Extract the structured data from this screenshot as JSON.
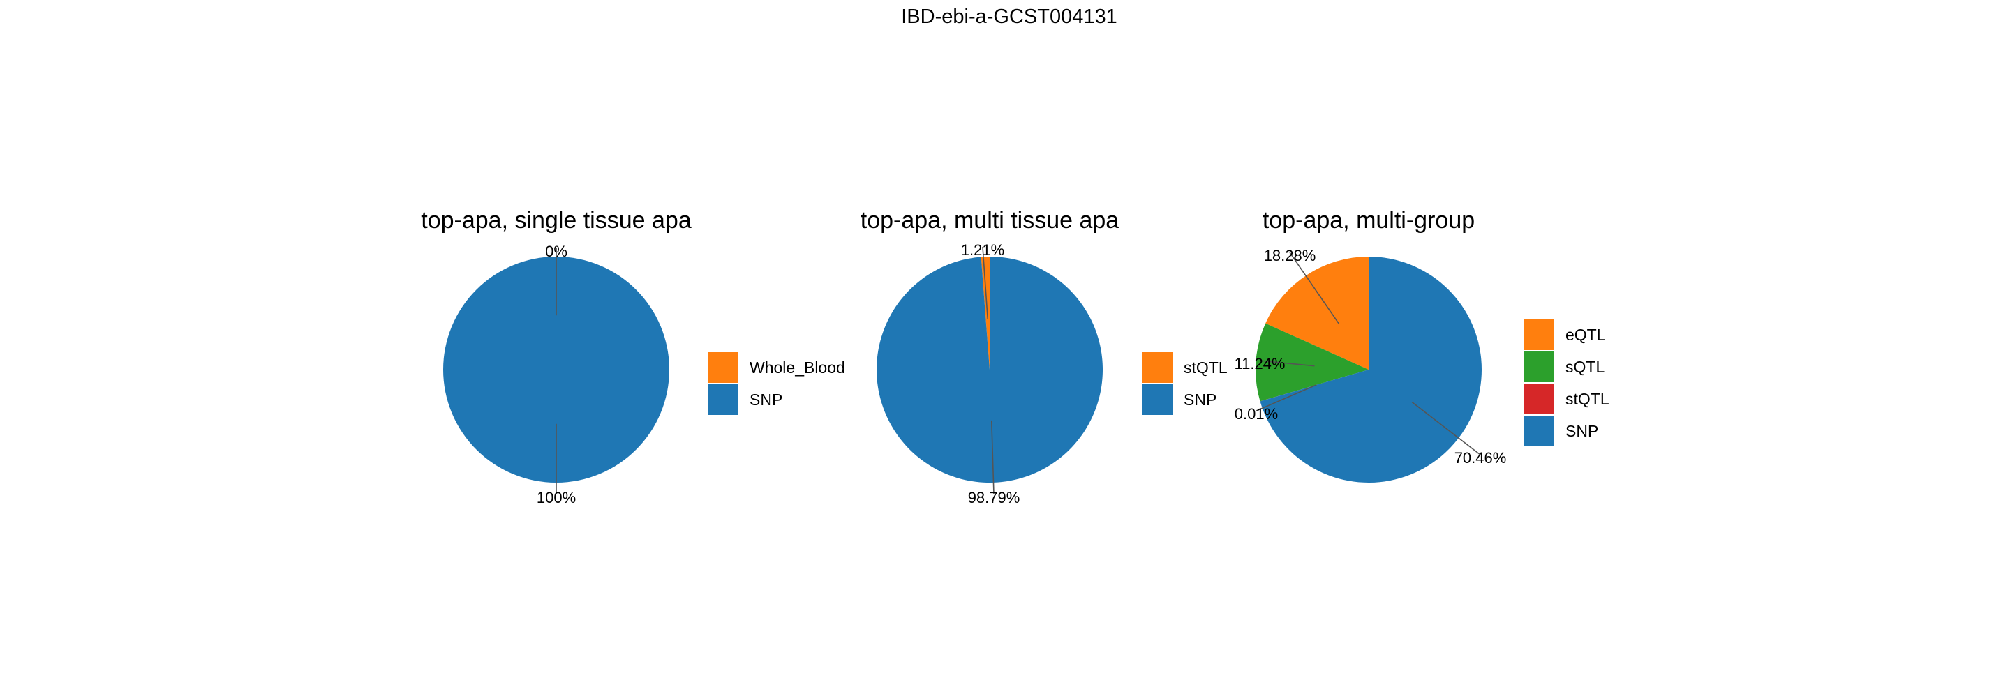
{
  "figure_title": "IBD-ebi-a-GCST004131",
  "colors": {
    "snp": "#1f77b4",
    "orange": "#ff7f0e",
    "green": "#2ca02c",
    "red": "#d62728",
    "leader": "#555555",
    "text": "#000000"
  },
  "chart_data": [
    {
      "type": "pie",
      "title": "top-apa, single tissue apa",
      "slices": [
        {
          "name": "Whole_Blood",
          "value": 0,
          "label": "0%",
          "color": "#ff7f0e"
        },
        {
          "name": "SNP",
          "value": 100,
          "label": "100%",
          "color": "#1f77b4"
        }
      ],
      "legend": [
        "Whole_Blood",
        "SNP"
      ],
      "legend_position": "right"
    },
    {
      "type": "pie",
      "title": "top-apa, multi tissue apa",
      "slices": [
        {
          "name": "stQTL",
          "value": 1.21,
          "label": "1.21%",
          "color": "#ff7f0e"
        },
        {
          "name": "SNP",
          "value": 98.79,
          "label": "98.79%",
          "color": "#1f77b4"
        }
      ],
      "legend": [
        "stQTL",
        "SNP"
      ],
      "legend_position": "right"
    },
    {
      "type": "pie",
      "title": "top-apa, multi-group",
      "slices": [
        {
          "name": "eQTL",
          "value": 18.28,
          "label": "18.28%",
          "color": "#ff7f0e"
        },
        {
          "name": "sQTL",
          "value": 11.24,
          "label": "11.24%",
          "color": "#2ca02c"
        },
        {
          "name": "stQTL",
          "value": 0.01,
          "label": "0.01%",
          "color": "#d62728"
        },
        {
          "name": "SNP",
          "value": 70.46,
          "label": "70.46%",
          "color": "#1f77b4"
        }
      ],
      "legend": [
        "eQTL",
        "sQTL",
        "stQTL",
        "SNP"
      ],
      "legend_position": "right"
    }
  ]
}
